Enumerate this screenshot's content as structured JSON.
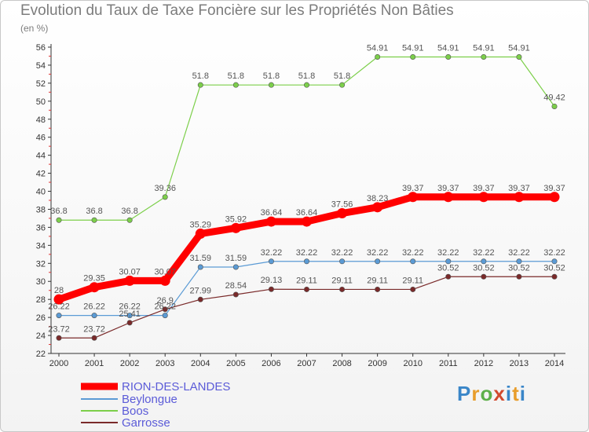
{
  "chart_data": {
    "type": "line",
    "title": "Evolution du Taux de Taxe Foncière sur les Propriétés Non Bâties",
    "subtitle": "(en %)",
    "x": [
      "2000",
      "2001",
      "2002",
      "2003",
      "2004",
      "2005",
      "2006",
      "2007",
      "2008",
      "2009",
      "2010",
      "2011",
      "2012",
      "2013",
      "2014"
    ],
    "ylim": [
      22,
      56
    ],
    "yticks": [
      22,
      24,
      26,
      28,
      30,
      32,
      34,
      36,
      38,
      40,
      42,
      44,
      46,
      48,
      50,
      52,
      54,
      56
    ],
    "series": [
      {
        "name": "RION-DES-LANDES",
        "color": "#ff0000",
        "width": 9,
        "values": [
          28,
          29.35,
          30.07,
          30.07,
          35.29,
          35.92,
          36.64,
          36.64,
          37.56,
          38.23,
          39.37,
          39.37,
          39.37,
          39.37,
          39.37
        ],
        "labels": [
          "28",
          "29.35",
          "30.07",
          "30.07",
          "35.29",
          "35.92",
          "36.64",
          "36.64",
          "37.56",
          "38.23",
          "39.37",
          "39.37",
          "39.37",
          "39.37",
          "39.37"
        ]
      },
      {
        "name": "Beylongue",
        "color": "#5b9bd5",
        "width": 1.2,
        "values": [
          26.22,
          26.22,
          26.22,
          26.22,
          31.59,
          31.59,
          32.22,
          32.22,
          32.22,
          32.22,
          32.22,
          32.22,
          32.22,
          32.22,
          32.22
        ],
        "labels": [
          "26.22",
          "26.22",
          "26.22",
          "26.22",
          "31.59",
          "31.59",
          "32.22",
          "32.22",
          "32.22",
          "32.22",
          "32.22",
          "32.22",
          "32.22",
          "32.22",
          "32.22"
        ]
      },
      {
        "name": "Boos",
        "color": "#7ccf4a",
        "width": 1.2,
        "values": [
          36.8,
          36.8,
          36.8,
          39.36,
          51.8,
          51.8,
          51.8,
          51.8,
          51.8,
          54.91,
          54.91,
          54.91,
          54.91,
          54.91,
          49.42
        ],
        "labels": [
          "36.8",
          "36.8",
          "36.8",
          "39.36",
          "51.8",
          "51.8",
          "51.8",
          "51.8",
          "51.8",
          "54.91",
          "54.91",
          "54.91",
          "54.91",
          "54.91",
          "49.42"
        ]
      },
      {
        "name": "Garrosse",
        "color": "#7a2a2a",
        "width": 1.2,
        "values": [
          23.72,
          23.72,
          25.41,
          26.9,
          27.99,
          28.54,
          29.13,
          29.11,
          29.11,
          29.11,
          29.11,
          30.52,
          30.52,
          30.52,
          30.52
        ],
        "labels": [
          "23.72",
          "23.72",
          "25.41",
          "26.9",
          "27.99",
          "28.54",
          "29.13",
          "29.11",
          "29.11",
          "29.11",
          "29.11",
          "30.52",
          "30.52",
          "30.52",
          "30.52"
        ]
      }
    ],
    "legend_position": "bottom-left",
    "grid": false
  },
  "logo": {
    "p": "P",
    "r": "r",
    "o": "o",
    "x": "x",
    "i": "i",
    "t": "t",
    "i2": "i"
  }
}
